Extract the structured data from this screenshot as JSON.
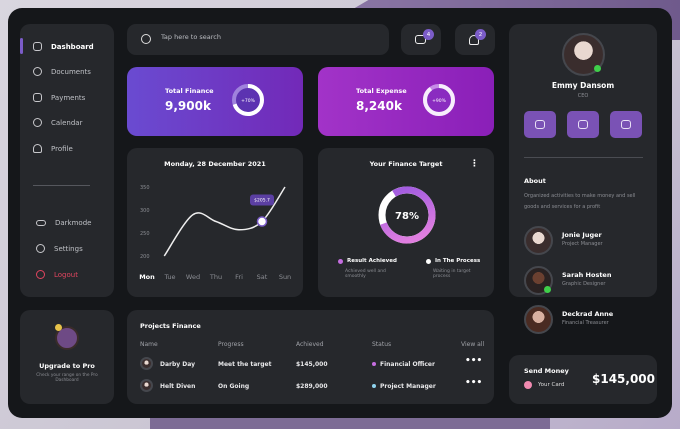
{
  "sidebar": {
    "items": [
      {
        "label": "Dashboard",
        "icon": "home-icon",
        "active": true
      },
      {
        "label": "Documents",
        "icon": "document-icon"
      },
      {
        "label": "Payments",
        "icon": "card-icon"
      },
      {
        "label": "Calendar",
        "icon": "calendar-icon"
      },
      {
        "label": "Profile",
        "icon": "user-icon"
      }
    ],
    "bottom": [
      {
        "label": "Darkmode",
        "icon": "toggle-icon"
      },
      {
        "label": "Settings",
        "icon": "gear-icon"
      },
      {
        "label": "Logout",
        "icon": "logout-icon",
        "color": "#e0455f"
      }
    ]
  },
  "search": {
    "placeholder": "Tap here to search"
  },
  "header": {
    "mail_count": "4",
    "notification_count": "2"
  },
  "stats": [
    {
      "title": "Total Finance",
      "value": "9,900k",
      "ring_label": "+70%",
      "ring": 0.7
    },
    {
      "title": "Total Expense",
      "value": "8,240k",
      "ring_label": "+90%",
      "ring": 0.9
    }
  ],
  "weekly": {
    "title": "Monday, 28 December 2021",
    "tooltip": "$205.7",
    "chart_data": {
      "type": "line",
      "categories": [
        "Mon",
        "Tue",
        "Wed",
        "Thu",
        "Fri",
        "Sat",
        "Sun"
      ],
      "y_ticks": [
        350,
        300,
        250,
        200
      ],
      "ylim": [
        200,
        350
      ],
      "x": [
        0.75,
        2,
        3,
        4,
        5,
        6
      ],
      "values": [
        200,
        290,
        275,
        257,
        275,
        350
      ],
      "highlight_index": 4,
      "active_category": "Mon",
      "grid": false
    }
  },
  "target": {
    "title": "Your Finance Target",
    "percent": "78%",
    "value": 0.78,
    "legend": [
      {
        "label": "Result Achieved",
        "desc": "Achieved well and smoothly",
        "color": "#c56ee0"
      },
      {
        "label": "In The Process",
        "desc": "Waiting in target process",
        "color": "#ffffff"
      }
    ]
  },
  "upgrade": {
    "title": "Upgrade to Pro",
    "desc": "Check your range on the Pro Dashboard"
  },
  "projects": {
    "title": "Projects Finance",
    "headers": [
      "Name",
      "Progress",
      "Achieved",
      "Status",
      "View all"
    ],
    "rows": [
      {
        "name": "Darby Day",
        "progress": "Meet the target",
        "achieved": "$145,000",
        "status": "Financial Officer",
        "status_color": "#c56ee0"
      },
      {
        "name": "Helt Diven",
        "progress": "On Going",
        "achieved": "$289,000",
        "status": "Project Manager",
        "status_color": "#8fd3ee"
      }
    ]
  },
  "profile": {
    "name": "Emmy Dansom",
    "role": "CEO",
    "about_title": "About",
    "about": "Organized activities to make money and sell goods and services for a profit",
    "team": [
      {
        "name": "Jonie Juger",
        "role": "Project Manager"
      },
      {
        "name": "Sarah Hosten",
        "role": "Graphic Designer"
      },
      {
        "name": "Deckrad Anne",
        "role": "Financial Treasurer"
      }
    ]
  },
  "send_money": {
    "title": "Send Money",
    "card_label": "Your Card",
    "amount": "$145,000"
  },
  "colors": {
    "accent": "#7a52b5",
    "online": "#3fcf4a"
  }
}
